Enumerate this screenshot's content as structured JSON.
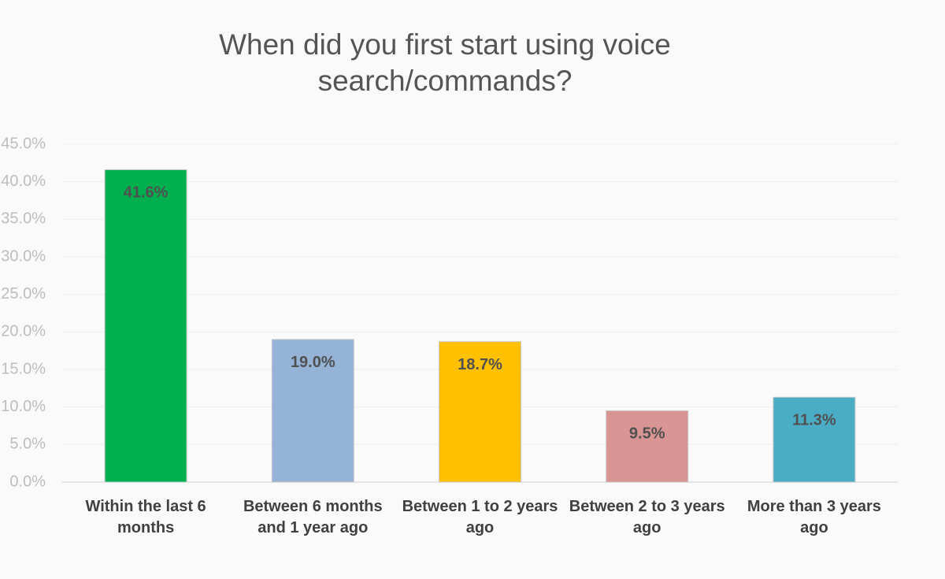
{
  "chart_data": {
    "type": "bar",
    "title": "When did you first start using voice search/commands?",
    "categories": [
      "Within the last 6 months",
      "Between 6 months and 1 year ago",
      "Between 1 to 2 years ago",
      "Between 2 to 3 years ago",
      "More than 3 years ago"
    ],
    "values": [
      41.6,
      19.0,
      18.7,
      9.5,
      11.3
    ],
    "value_labels": [
      "41.6%",
      "19.0%",
      "18.7%",
      "9.5%",
      "11.3%"
    ],
    "colors": [
      "#00b04f",
      "#95b3d7",
      "#ffc000",
      "#d99594",
      "#4bacc6"
    ],
    "ylim": [
      0,
      45
    ],
    "yticks": [
      {
        "value": 0,
        "label": "0.0%"
      },
      {
        "value": 5,
        "label": "5.0%"
      },
      {
        "value": 10,
        "label": "10.0%"
      },
      {
        "value": 15,
        "label": "15.0%"
      },
      {
        "value": 20,
        "label": "20.0%"
      },
      {
        "value": 25,
        "label": "25.0%"
      },
      {
        "value": 30,
        "label": "30.0%"
      },
      {
        "value": 35,
        "label": "35.0%"
      },
      {
        "value": 40,
        "label": "40.0%"
      },
      {
        "value": 45,
        "label": "45.0%"
      }
    ],
    "grid": true
  }
}
